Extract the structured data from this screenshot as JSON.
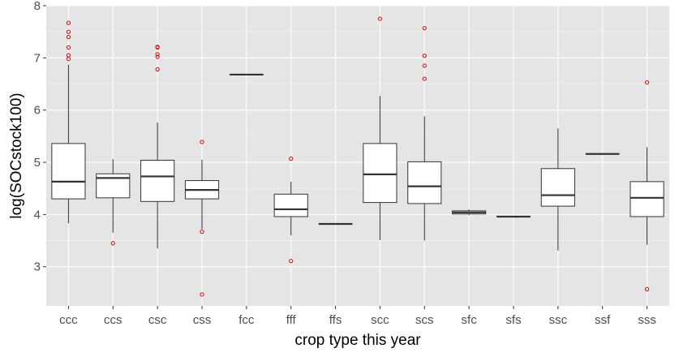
{
  "chart_data": {
    "type": "boxplot",
    "title": "",
    "xlabel": "crop type this year",
    "ylabel": "log(SOCstock100)",
    "ylim": [
      2.25,
      8.0
    ],
    "yticks": [
      3,
      4,
      5,
      6,
      7,
      8
    ],
    "grid": true,
    "colors": {
      "panel": "#e5e5e5",
      "grid_major": "#ffffff",
      "box_line": "#333333",
      "box_fill": "#ffffff",
      "outlier": "#e00000"
    },
    "categories": [
      "ccc",
      "ccs",
      "csc",
      "css",
      "fcc",
      "fff",
      "ffs",
      "scc",
      "scs",
      "sfc",
      "sfs",
      "ssc",
      "ssf",
      "sss"
    ],
    "boxes": [
      {
        "category": "ccc",
        "min": 3.83,
        "q1": 4.3,
        "median": 4.63,
        "q3": 5.36,
        "max": 6.87,
        "outliers": [
          7.67,
          7.5,
          7.4,
          7.2,
          7.05,
          6.98
        ]
      },
      {
        "category": "ccs",
        "min": 3.65,
        "q1": 4.32,
        "median": 4.7,
        "q3": 4.78,
        "max": 5.06,
        "outliers": [
          3.45
        ]
      },
      {
        "category": "csc",
        "min": 3.35,
        "q1": 4.25,
        "median": 4.73,
        "q3": 5.04,
        "max": 5.76,
        "outliers": [
          7.21,
          7.2,
          7.07,
          7.02,
          6.78
        ]
      },
      {
        "category": "css",
        "min": 3.72,
        "q1": 4.3,
        "median": 4.47,
        "q3": 4.65,
        "max": 5.05,
        "outliers": [
          5.39,
          3.67,
          2.47
        ]
      },
      {
        "category": "fcc",
        "min": 6.68,
        "q1": 6.68,
        "median": 6.68,
        "q3": 6.68,
        "max": 6.68,
        "outliers": []
      },
      {
        "category": "fff",
        "min": 3.6,
        "q1": 3.96,
        "median": 4.1,
        "q3": 4.39,
        "max": 4.63,
        "outliers": [
          5.07,
          3.11
        ]
      },
      {
        "category": "ffs",
        "min": 3.82,
        "q1": 3.82,
        "median": 3.82,
        "q3": 3.82,
        "max": 3.82,
        "outliers": []
      },
      {
        "category": "scc",
        "min": 3.51,
        "q1": 4.23,
        "median": 4.77,
        "q3": 5.36,
        "max": 6.27,
        "outliers": [
          7.75
        ]
      },
      {
        "category": "scs",
        "min": 3.5,
        "q1": 4.21,
        "median": 4.54,
        "q3": 5.01,
        "max": 5.88,
        "outliers": [
          7.57,
          7.04,
          6.85,
          6.6
        ]
      },
      {
        "category": "sfc",
        "min": 3.99,
        "q1": 4.01,
        "median": 4.04,
        "q3": 4.07,
        "max": 4.1,
        "outliers": []
      },
      {
        "category": "sfs",
        "min": 3.96,
        "q1": 3.96,
        "median": 3.96,
        "q3": 3.96,
        "max": 3.96,
        "outliers": []
      },
      {
        "category": "ssc",
        "min": 3.31,
        "q1": 4.16,
        "median": 4.37,
        "q3": 4.88,
        "max": 5.65,
        "outliers": []
      },
      {
        "category": "ssf",
        "min": 5.16,
        "q1": 5.16,
        "median": 5.16,
        "q3": 5.16,
        "max": 5.16,
        "outliers": []
      },
      {
        "category": "sss",
        "min": 3.42,
        "q1": 3.96,
        "median": 4.32,
        "q3": 4.63,
        "max": 5.29,
        "outliers": [
          6.53,
          2.57
        ]
      }
    ]
  }
}
